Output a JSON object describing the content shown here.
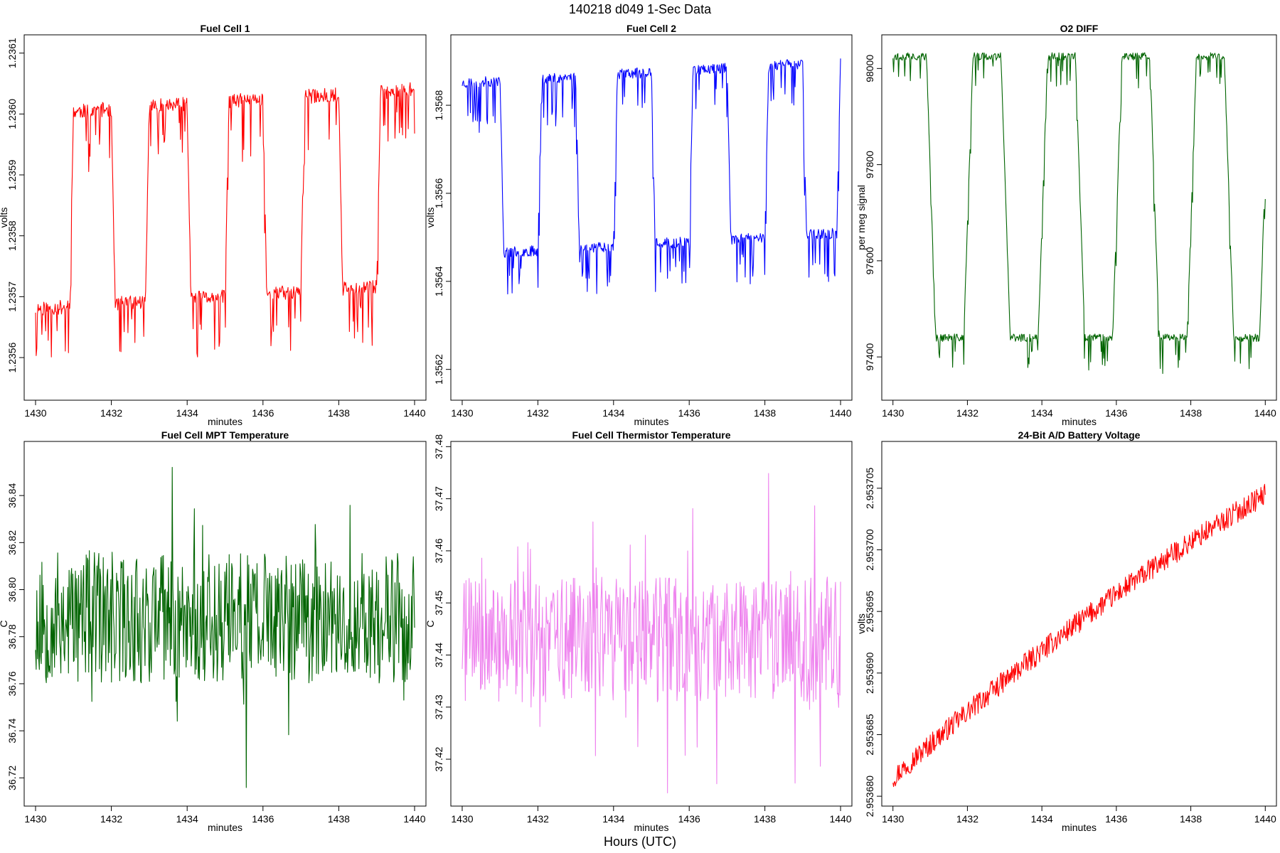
{
  "title": "140218   d049   1-Sec Data",
  "bottom_label": "Hours (UTC)",
  "chart_data": [
    {
      "type": "line",
      "title": "Fuel Cell 1",
      "xlabel": "minutes",
      "ylabel": "volts",
      "color": "#ff0000",
      "xlim": [
        1429.7,
        1440.3
      ],
      "ylim": [
        1.23553,
        1.23613
      ],
      "xticks": [
        1430,
        1432,
        1434,
        1436,
        1438,
        1440
      ],
      "xtick_labels": [
        "1430",
        "1432",
        "1434",
        "1436",
        "1438",
        "1440"
      ],
      "yticks": [
        1.2356,
        1.2357,
        1.2358,
        1.2359,
        1.236,
        1.2361
      ],
      "ytick_labels": [
        "1.2356",
        "1.2357",
        "1.2358",
        "1.2359",
        "1.2360",
        "1.2361"
      ],
      "series": [
        {
          "name": "Fuel Cell 1",
          "signal": {
            "kind": "square",
            "start": 1430,
            "end": 1440,
            "points": 600,
            "low": 1.23568,
            "high": 1.236,
            "transitions": [
              {
                "time": 1430.9,
                "to": "high"
              },
              {
                "time": 1432.0,
                "to": "low"
              },
              {
                "time": 1432.9,
                "to": "high"
              },
              {
                "time": 1434.0,
                "to": "low"
              },
              {
                "time": 1435.0,
                "to": "high"
              },
              {
                "time": 1436.0,
                "to": "low"
              },
              {
                "time": 1437.0,
                "to": "high"
              },
              {
                "time": 1438.0,
                "to": "low"
              },
              {
                "time": 1439.0,
                "to": "high"
              }
            ],
            "rise": 0.1,
            "trend": 4e-06,
            "noise": 1.2e-05,
            "spike_prob": 0.16,
            "spike_dir": -1,
            "spike_size": 9e-05,
            "seed": 11
          }
        }
      ]
    },
    {
      "type": "line",
      "title": "Fuel Cell 2",
      "xlabel": "minutes",
      "ylabel": "volts",
      "color": "#0000ff",
      "xlim": [
        1429.7,
        1440.3
      ],
      "ylim": [
        1.35613,
        1.35696
      ],
      "xticks": [
        1430,
        1432,
        1434,
        1436,
        1438,
        1440
      ],
      "xtick_labels": [
        "1430",
        "1432",
        "1434",
        "1436",
        "1438",
        "1440"
      ],
      "yticks": [
        1.3562,
        1.3564,
        1.3566,
        1.3568
      ],
      "ytick_labels": [
        "1.3562",
        "1.3564",
        "1.3566",
        "1.3568"
      ],
      "series": [
        {
          "name": "Fuel Cell 2",
          "signal": {
            "kind": "square",
            "start": 1430,
            "end": 1440,
            "points": 600,
            "low": 1.35646,
            "high": 1.35685,
            "transitions": [
              {
                "time": 1431.0,
                "to": "low"
              },
              {
                "time": 1432.0,
                "to": "high"
              },
              {
                "time": 1433.0,
                "to": "low"
              },
              {
                "time": 1434.0,
                "to": "high"
              },
              {
                "time": 1435.0,
                "to": "low"
              },
              {
                "time": 1436.0,
                "to": "high"
              },
              {
                "time": 1437.0,
                "to": "low"
              },
              {
                "time": 1438.0,
                "to": "high"
              },
              {
                "time": 1439.0,
                "to": "low"
              },
              {
                "time": 1439.9,
                "to": "high"
              }
            ],
            "rise": 0.1,
            "trend": 5e-06,
            "noise": 1.2e-05,
            "spike_prob": 0.16,
            "spike_dir": -1,
            "spike_size": 0.00011,
            "seed": 23
          }
        }
      ]
    },
    {
      "type": "line",
      "title": "O2 DIFF",
      "xlabel": "minutes",
      "ylabel": "per meg signal",
      "color": "#006400",
      "xlim": [
        1429.7,
        1440.3
      ],
      "ylim": [
        97310,
        98070
      ],
      "xticks": [
        1430,
        1432,
        1434,
        1436,
        1438,
        1440
      ],
      "xtick_labels": [
        "1430",
        "1432",
        "1434",
        "1436",
        "1438",
        "1440"
      ],
      "yticks": [
        97400,
        97600,
        97800,
        98000
      ],
      "ytick_labels": [
        "97400",
        "97600",
        "97800",
        "98000"
      ],
      "series": [
        {
          "name": "O2 DIFF",
          "signal": {
            "kind": "square",
            "start": 1430,
            "end": 1440,
            "points": 600,
            "low": 97440,
            "high": 98025,
            "transitions": [
              {
                "time": 1430.9,
                "to": "low"
              },
              {
                "time": 1431.9,
                "to": "high"
              },
              {
                "time": 1432.9,
                "to": "low"
              },
              {
                "time": 1433.9,
                "to": "high"
              },
              {
                "time": 1434.9,
                "to": "low"
              },
              {
                "time": 1435.9,
                "to": "high"
              },
              {
                "time": 1436.9,
                "to": "low"
              },
              {
                "time": 1437.9,
                "to": "high"
              },
              {
                "time": 1438.9,
                "to": "low"
              },
              {
                "time": 1439.85,
                "to": "high"
              }
            ],
            "rise": 0.25,
            "trend": 0,
            "noise": 8,
            "spike_prob": 0.12,
            "spike_dir": -1,
            "spike_size": 70,
            "seed": 37
          }
        }
      ]
    },
    {
      "type": "line",
      "title": "Fuel Cell MPT Temperature",
      "xlabel": "minutes",
      "ylabel": "C",
      "color": "#006400",
      "xlim": [
        1429.7,
        1440.3
      ],
      "ylim": [
        36.708,
        36.863
      ],
      "xticks": [
        1430,
        1432,
        1434,
        1436,
        1438,
        1440
      ],
      "xtick_labels": [
        "1430",
        "1432",
        "1434",
        "1436",
        "1438",
        "1440"
      ],
      "yticks": [
        36.72,
        36.74,
        36.76,
        36.78,
        36.8,
        36.82,
        36.84
      ],
      "ytick_labels": [
        "36.72",
        "36.74",
        "36.76",
        "36.78",
        "36.80",
        "36.82",
        "36.84"
      ],
      "series": [
        {
          "name": "Fuel Cell MPT Temperature",
          "signal": {
            "kind": "noise",
            "start": 1430,
            "end": 1440,
            "points": 600,
            "mean": 36.788,
            "amp": 0.028,
            "trend": 0,
            "outlier_prob": 0.04,
            "outlier_size": 0.05,
            "clamp": [
              36.713,
              36.852
            ],
            "seed": 53
          }
        }
      ]
    },
    {
      "type": "line",
      "title": "Fuel Cell Thermistor Temperature",
      "xlabel": "minutes",
      "ylabel": "C",
      "color": "#ee82ee",
      "xlim": [
        1429.7,
        1440.3
      ],
      "ylim": [
        37.411,
        37.481
      ],
      "xticks": [
        1430,
        1432,
        1434,
        1436,
        1438,
        1440
      ],
      "xtick_labels": [
        "1430",
        "1432",
        "1434",
        "1436",
        "1438",
        "1440"
      ],
      "yticks": [
        37.42,
        37.43,
        37.44,
        37.45,
        37.46,
        37.47,
        37.48
      ],
      "ytick_labels": [
        "37.42",
        "37.43",
        "37.44",
        "37.45",
        "37.46",
        "37.47",
        "37.48"
      ],
      "series": [
        {
          "name": "Fuel Cell Thermistor Temperature",
          "signal": {
            "kind": "noise",
            "start": 1430,
            "end": 1440,
            "points": 600,
            "mean": 37.443,
            "amp": 0.012,
            "trend": 0,
            "outlier_prob": 0.05,
            "outlier_size": 0.024,
            "clamp": [
              37.413,
              37.479
            ],
            "seed": 71
          }
        }
      ]
    },
    {
      "type": "line",
      "title": "24-Bit A/D Battery Voltage",
      "xlabel": "minutes",
      "ylabel": "volts",
      "color": "#ff0000",
      "xlim": [
        1429.7,
        1440.3
      ],
      "ylim": [
        2.9536792,
        2.9537088
      ],
      "xticks": [
        1430,
        1432,
        1434,
        1436,
        1438,
        1440
      ],
      "xtick_labels": [
        "1430",
        "1432",
        "1434",
        "1436",
        "1438",
        "1440"
      ],
      "yticks": [
        2.95368,
        2.953685,
        2.95369,
        2.953695,
        2.9537,
        2.953705
      ],
      "ytick_labels": [
        "2.953680",
        "2.953685",
        "2.953690",
        "2.953695",
        "2.953700",
        "2.953705"
      ],
      "series": [
        {
          "name": "24-Bit A/D Battery Voltage",
          "signal": {
            "kind": "trend",
            "start": 1430,
            "end": 1440,
            "points": 600,
            "y0": 2.9536815,
            "y1": 2.9537045,
            "curve": 0.2,
            "noise": 9e-07,
            "seed": 97
          }
        }
      ]
    }
  ]
}
